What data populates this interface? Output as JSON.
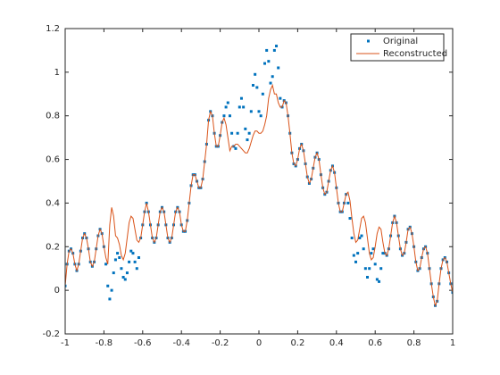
{
  "chart_data": {
    "type": "line",
    "x": [
      -1,
      -0.99,
      -0.98,
      -0.97,
      -0.96,
      -0.95,
      -0.94,
      -0.93,
      -0.92,
      -0.91,
      -0.9,
      -0.89,
      -0.88,
      -0.87,
      -0.86,
      -0.85,
      -0.84,
      -0.83,
      -0.82,
      -0.81,
      -0.8,
      -0.79,
      -0.78,
      -0.77,
      -0.76,
      -0.75,
      -0.74,
      -0.73,
      -0.72,
      -0.71,
      -0.7,
      -0.69,
      -0.68,
      -0.67,
      -0.66,
      -0.65,
      -0.64,
      -0.63,
      -0.62,
      -0.61,
      -0.6,
      -0.59,
      -0.58,
      -0.57,
      -0.56,
      -0.55,
      -0.54,
      -0.53,
      -0.52,
      -0.51,
      -0.5,
      -0.49,
      -0.48,
      -0.47,
      -0.46,
      -0.45,
      -0.44,
      -0.43,
      -0.42,
      -0.41,
      -0.4,
      -0.39,
      -0.38,
      -0.37,
      -0.36,
      -0.35,
      -0.34,
      -0.33,
      -0.32,
      -0.31,
      -0.3,
      -0.29,
      -0.28,
      -0.27,
      -0.26,
      -0.25,
      -0.24,
      -0.23,
      -0.22,
      -0.21,
      -0.2,
      -0.19,
      -0.18,
      -0.17,
      -0.16,
      -0.15,
      -0.14,
      -0.13,
      -0.12,
      -0.11,
      -0.1,
      -0.09,
      -0.08,
      -0.07,
      -0.06,
      -0.05,
      -0.04,
      -0.03,
      -0.02,
      -0.01,
      0,
      0.01,
      0.02,
      0.03,
      0.04,
      0.05,
      0.06,
      0.07,
      0.08,
      0.09,
      0.1,
      0.11,
      0.12,
      0.13,
      0.14,
      0.15,
      0.16,
      0.17,
      0.18,
      0.19,
      0.2,
      0.21,
      0.22,
      0.23,
      0.24,
      0.25,
      0.26,
      0.27,
      0.28,
      0.29,
      0.3,
      0.31,
      0.32,
      0.33,
      0.34,
      0.35,
      0.36,
      0.37,
      0.38,
      0.39,
      0.4,
      0.41,
      0.42,
      0.43,
      0.44,
      0.45,
      0.46,
      0.47,
      0.48,
      0.49,
      0.5,
      0.51,
      0.52,
      0.53,
      0.54,
      0.55,
      0.56,
      0.57,
      0.58,
      0.59,
      0.6,
      0.61,
      0.62,
      0.63,
      0.64,
      0.65,
      0.66,
      0.67,
      0.68,
      0.69,
      0.7,
      0.71,
      0.72,
      0.73,
      0.74,
      0.75,
      0.76,
      0.77,
      0.78,
      0.79,
      0.8,
      0.81,
      0.82,
      0.83,
      0.84,
      0.85,
      0.86,
      0.87,
      0.88,
      0.89,
      0.9,
      0.91,
      0.92,
      0.93,
      0.94,
      0.95,
      0.96,
      0.97,
      0.98,
      0.99,
      1
    ],
    "series": [
      {
        "name": "Original",
        "color": "#0072bd",
        "style": "markers",
        "values": [
          0.02,
          0.12,
          0.18,
          0.19,
          0.17,
          0.12,
          0.09,
          0.12,
          0.18,
          0.24,
          0.26,
          0.24,
          0.19,
          0.13,
          0.11,
          0.13,
          0.19,
          0.25,
          0.28,
          0.26,
          0.2,
          0.12,
          0.02,
          -0.04,
          0.0,
          0.08,
          0.14,
          0.17,
          0.15,
          0.1,
          0.06,
          0.05,
          0.08,
          0.13,
          0.18,
          0.17,
          0.13,
          0.1,
          0.15,
          0.24,
          0.3,
          0.36,
          0.4,
          0.36,
          0.3,
          0.24,
          0.22,
          0.24,
          0.3,
          0.36,
          0.38,
          0.36,
          0.3,
          0.24,
          0.22,
          0.24,
          0.3,
          0.36,
          0.38,
          0.36,
          0.3,
          0.27,
          0.27,
          0.32,
          0.4,
          0.48,
          0.53,
          0.53,
          0.5,
          0.47,
          0.47,
          0.51,
          0.59,
          0.67,
          0.78,
          0.82,
          0.8,
          0.72,
          0.66,
          0.66,
          0.71,
          0.77,
          0.8,
          0.84,
          0.86,
          0.8,
          0.72,
          0.66,
          0.65,
          0.72,
          0.84,
          0.88,
          0.84,
          0.74,
          0.69,
          0.72,
          0.82,
          0.94,
          0.99,
          0.93,
          0.82,
          0.8,
          0.9,
          1.04,
          1.1,
          1.05,
          0.95,
          0.98,
          1.1,
          1.12,
          1.02,
          0.88,
          0.84,
          0.87,
          0.86,
          0.8,
          0.72,
          0.63,
          0.58,
          0.57,
          0.6,
          0.65,
          0.67,
          0.64,
          0.58,
          0.52,
          0.49,
          0.51,
          0.56,
          0.61,
          0.63,
          0.6,
          0.53,
          0.47,
          0.44,
          0.45,
          0.5,
          0.55,
          0.57,
          0.54,
          0.47,
          0.4,
          0.36,
          0.36,
          0.4,
          0.44,
          0.4,
          0.33,
          0.24,
          0.16,
          0.13,
          0.17,
          0.24,
          0.25,
          0.19,
          0.1,
          0.06,
          0.1,
          0.17,
          0.19,
          0.12,
          0.05,
          0.04,
          0.1,
          0.17,
          0.17,
          0.16,
          0.19,
          0.25,
          0.31,
          0.34,
          0.31,
          0.25,
          0.19,
          0.16,
          0.17,
          0.22,
          0.28,
          0.29,
          0.26,
          0.2,
          0.13,
          0.09,
          0.1,
          0.15,
          0.19,
          0.2,
          0.17,
          0.1,
          0.03,
          -0.03,
          -0.07,
          -0.05,
          0.03,
          0.1,
          0.14,
          0.15,
          0.13,
          0.08,
          0.03,
          -0.01
        ]
      },
      {
        "name": "Reconstructed",
        "color": "#d95319",
        "style": "line",
        "values": [
          0.02,
          0.12,
          0.18,
          0.19,
          0.17,
          0.12,
          0.09,
          0.12,
          0.18,
          0.24,
          0.26,
          0.24,
          0.19,
          0.13,
          0.11,
          0.13,
          0.19,
          0.25,
          0.28,
          0.26,
          0.2,
          0.15,
          0.12,
          0.3,
          0.38,
          0.34,
          0.25,
          0.24,
          0.21,
          0.16,
          0.14,
          0.17,
          0.24,
          0.31,
          0.34,
          0.33,
          0.28,
          0.23,
          0.22,
          0.24,
          0.3,
          0.36,
          0.4,
          0.36,
          0.3,
          0.24,
          0.22,
          0.24,
          0.3,
          0.36,
          0.38,
          0.36,
          0.3,
          0.24,
          0.22,
          0.24,
          0.3,
          0.36,
          0.38,
          0.36,
          0.3,
          0.27,
          0.27,
          0.32,
          0.4,
          0.48,
          0.53,
          0.53,
          0.5,
          0.47,
          0.47,
          0.51,
          0.59,
          0.67,
          0.78,
          0.82,
          0.8,
          0.72,
          0.66,
          0.66,
          0.71,
          0.77,
          0.79,
          0.76,
          0.7,
          0.64,
          0.66,
          0.66,
          0.67,
          0.67,
          0.66,
          0.65,
          0.64,
          0.63,
          0.63,
          0.65,
          0.68,
          0.71,
          0.73,
          0.73,
          0.72,
          0.72,
          0.73,
          0.76,
          0.8,
          0.88,
          0.92,
          0.94,
          0.9,
          0.9,
          0.86,
          0.84,
          0.84,
          0.87,
          0.86,
          0.8,
          0.72,
          0.63,
          0.58,
          0.57,
          0.6,
          0.65,
          0.67,
          0.64,
          0.58,
          0.52,
          0.49,
          0.51,
          0.56,
          0.61,
          0.63,
          0.6,
          0.53,
          0.47,
          0.44,
          0.45,
          0.5,
          0.55,
          0.57,
          0.54,
          0.47,
          0.4,
          0.36,
          0.36,
          0.4,
          0.44,
          0.45,
          0.41,
          0.33,
          0.26,
          0.22,
          0.23,
          0.28,
          0.33,
          0.34,
          0.31,
          0.24,
          0.17,
          0.14,
          0.15,
          0.2,
          0.26,
          0.29,
          0.28,
          0.22,
          0.17,
          0.16,
          0.19,
          0.25,
          0.31,
          0.34,
          0.31,
          0.25,
          0.19,
          0.16,
          0.17,
          0.22,
          0.28,
          0.29,
          0.26,
          0.2,
          0.13,
          0.09,
          0.1,
          0.15,
          0.19,
          0.2,
          0.17,
          0.1,
          0.03,
          -0.03,
          -0.07,
          -0.05,
          0.03,
          0.1,
          0.14,
          0.15,
          0.13,
          0.08,
          0.03,
          -0.01
        ]
      }
    ],
    "xlim": [
      -1,
      1
    ],
    "xticks": [
      -1,
      -0.8,
      -0.6,
      -0.4,
      -0.2,
      0,
      0.2,
      0.4,
      0.6,
      0.8,
      1
    ],
    "ylim": [
      -0.2,
      1.2
    ],
    "yticks": [
      -0.2,
      0,
      0.2,
      0.4,
      0.6,
      0.8,
      1,
      1.2
    ],
    "legend": "northeast"
  }
}
